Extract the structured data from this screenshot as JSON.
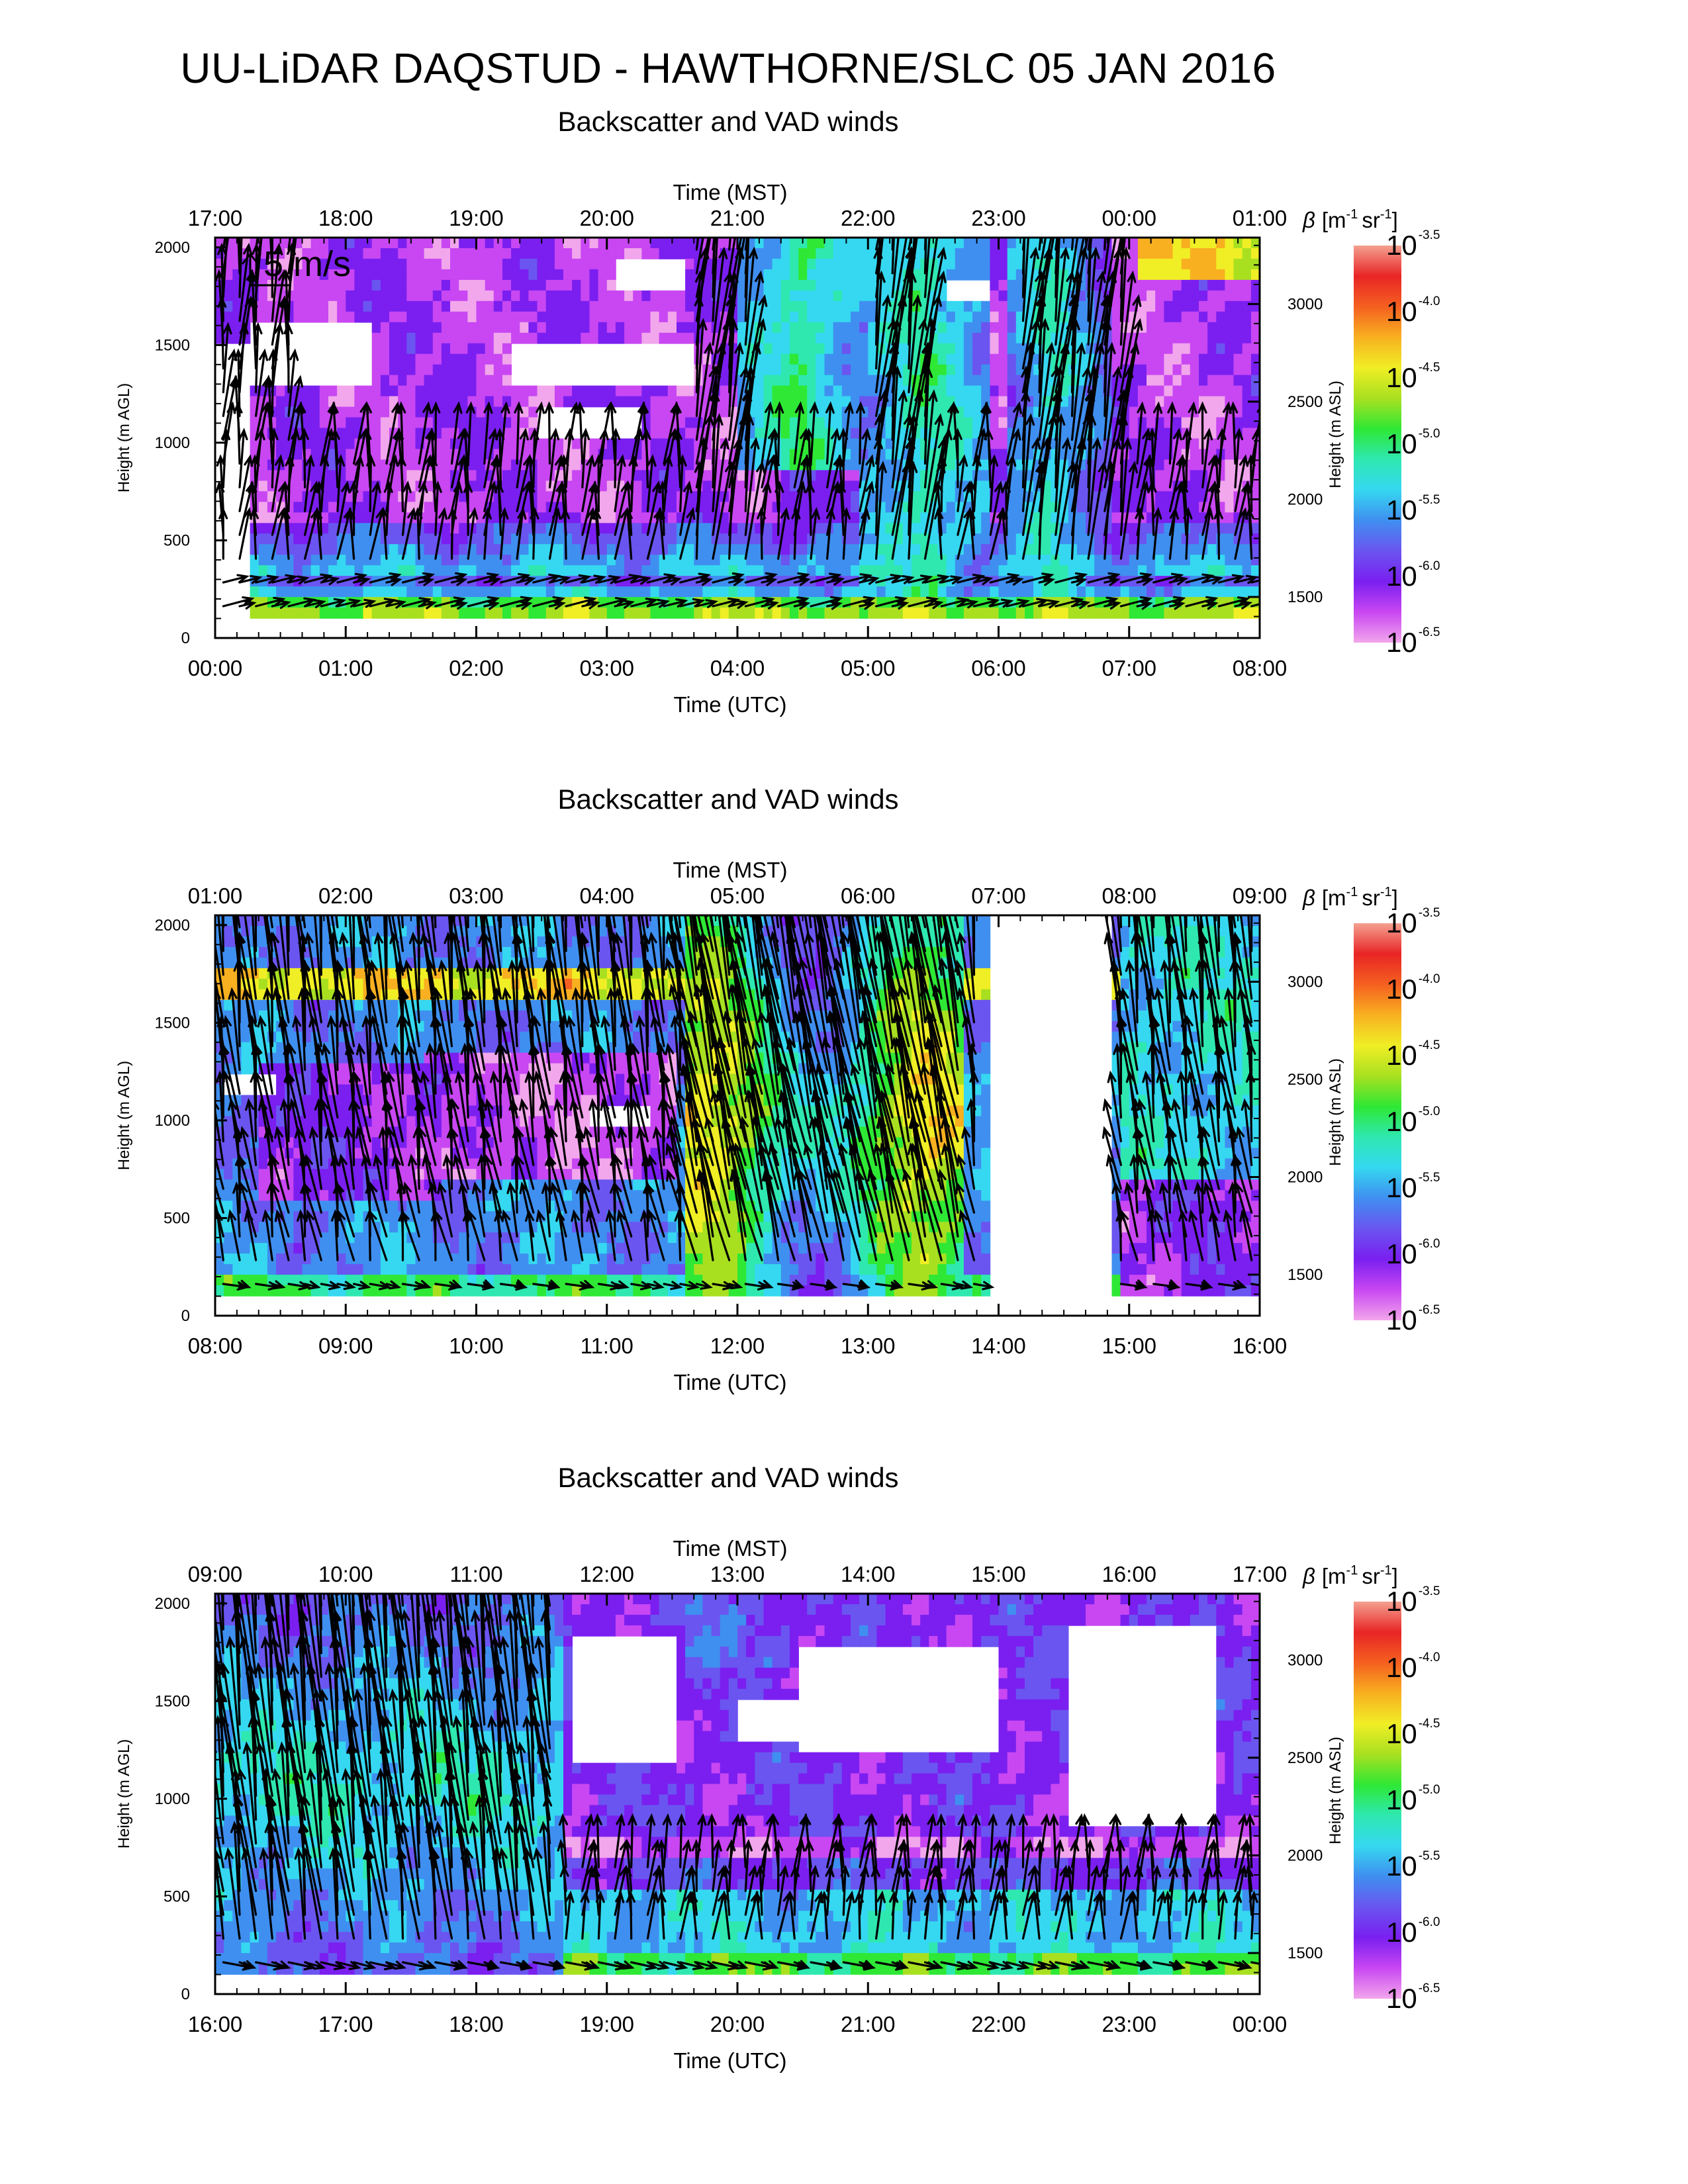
{
  "title": "UU-LiDAR DAQSTUD - HAWTHORNE/SLC 05 JAN 2016",
  "scale_label": "5 m/s",
  "colors": {
    "colormap": [
      "#f2a6ec",
      "#c847f2",
      "#7a1ff0",
      "#6a55f0",
      "#3f8ff0",
      "#35d8f0",
      "#2ee8b0",
      "#2ee835",
      "#a8e020",
      "#f0ee25",
      "#f8b020",
      "#f56020",
      "#e82525",
      "#f4a090"
    ],
    "arrow": "#000000",
    "frame": "#000000"
  },
  "chart_data": [
    {
      "type": "heatmap",
      "title": "Backscatter and VAD winds",
      "xlabel": "Time (UTC)",
      "xlabel_top": "Time (MST)",
      "ylabel": "Height (m AGL)",
      "ylabel_right": "Height (m ASL)",
      "x_ticks": [
        "00:00",
        "01:00",
        "02:00",
        "03:00",
        "04:00",
        "05:00",
        "06:00",
        "07:00",
        "08:00"
      ],
      "x_ticks_top": [
        "17:00",
        "18:00",
        "19:00",
        "20:00",
        "21:00",
        "22:00",
        "23:00",
        "00:00",
        "01:00"
      ],
      "xlim": [
        0,
        8
      ],
      "y_ticks": [
        "0",
        "500",
        "1000",
        "1500",
        "2000"
      ],
      "y_ticks_right": [
        "1500",
        "2000",
        "2500",
        "3000"
      ],
      "ylim": [
        0,
        2050
      ],
      "colorbar": {
        "label": "β [m⁻¹ sr⁻¹]",
        "label_parts": {
          "beta": "β",
          "l1": "[m",
          "e1": "-1",
          "l2": "sr",
          "e2": "-1",
          "l3": "]"
        },
        "ticks": [
          "-3.5",
          "-4.0",
          "-4.5",
          "-5.0",
          "-5.5",
          "-6.0",
          "-6.5"
        ],
        "base": "10",
        "range": [
          -6.5,
          -3.5
        ]
      }
    },
    {
      "type": "heatmap",
      "title": "Backscatter and VAD winds",
      "xlabel": "Time (UTC)",
      "xlabel_top": "Time (MST)",
      "ylabel": "Height (m AGL)",
      "ylabel_right": "Height (m ASL)",
      "x_ticks": [
        "08:00",
        "09:00",
        "10:00",
        "11:00",
        "12:00",
        "13:00",
        "14:00",
        "15:00",
        "16:00"
      ],
      "x_ticks_top": [
        "01:00",
        "02:00",
        "03:00",
        "04:00",
        "05:00",
        "06:00",
        "07:00",
        "08:00",
        "09:00"
      ],
      "xlim": [
        8,
        16
      ],
      "y_ticks": [
        "0",
        "500",
        "1000",
        "1500",
        "2000"
      ],
      "y_ticks_right": [
        "1500",
        "2000",
        "2500",
        "3000"
      ],
      "ylim": [
        0,
        2050
      ],
      "colorbar": {
        "label": "β [m⁻¹ sr⁻¹]",
        "label_parts": {
          "beta": "β",
          "l1": "[m",
          "e1": "-1",
          "l2": "sr",
          "e2": "-1",
          "l3": "]"
        },
        "ticks": [
          "-3.5",
          "-4.0",
          "-4.5",
          "-5.0",
          "-5.5",
          "-6.0",
          "-6.5"
        ],
        "base": "10",
        "range": [
          -6.5,
          -3.5
        ]
      }
    },
    {
      "type": "heatmap",
      "title": "Backscatter and VAD winds",
      "xlabel": "Time (UTC)",
      "xlabel_top": "Time (MST)",
      "ylabel": "Height (m AGL)",
      "ylabel_right": "Height (m ASL)",
      "x_ticks": [
        "16:00",
        "17:00",
        "18:00",
        "19:00",
        "20:00",
        "21:00",
        "22:00",
        "23:00",
        "00:00"
      ],
      "x_ticks_top": [
        "09:00",
        "10:00",
        "11:00",
        "12:00",
        "13:00",
        "14:00",
        "15:00",
        "16:00",
        "17:00"
      ],
      "xlim": [
        16,
        24
      ],
      "y_ticks": [
        "0",
        "500",
        "1000",
        "1500",
        "2000"
      ],
      "y_ticks_right": [
        "1500",
        "2000",
        "2500",
        "3000"
      ],
      "ylim": [
        0,
        2050
      ],
      "colorbar": {
        "label": "β [m⁻¹ sr⁻¹]",
        "label_parts": {
          "beta": "β",
          "l1": "[m",
          "e1": "-1",
          "l2": "sr",
          "e2": "-1",
          "l3": "]"
        },
        "ticks": [
          "-3.5",
          "-4.0",
          "-4.5",
          "-5.0",
          "-5.5",
          "-6.0",
          "-6.5"
        ],
        "base": "10",
        "range": [
          -6.5,
          -3.5
        ]
      }
    }
  ]
}
